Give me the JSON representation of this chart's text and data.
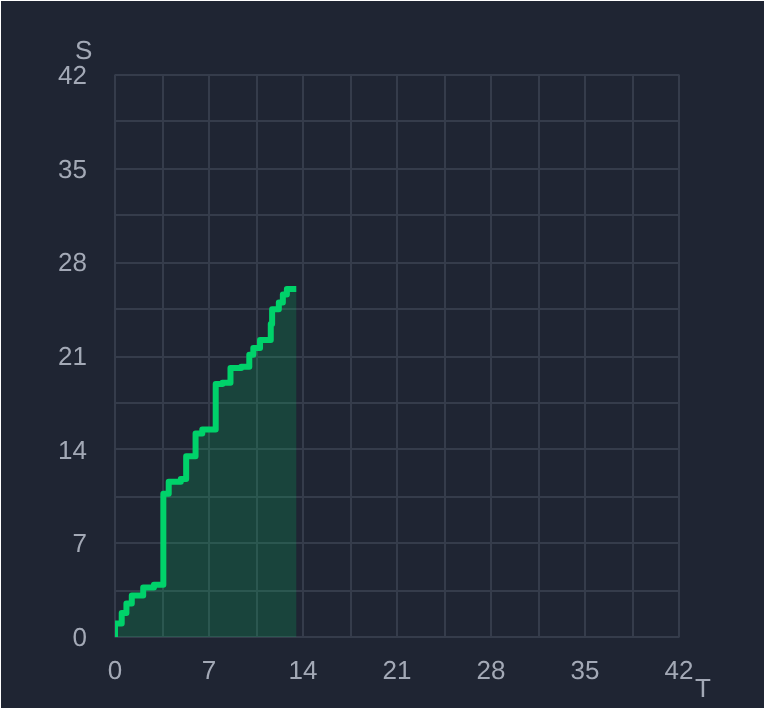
{
  "chart_data": {
    "type": "area",
    "xlabel": "T",
    "ylabel": "S",
    "x": [
      0,
      0,
      0.5,
      0.5,
      0.85,
      0.85,
      1.25,
      1.25,
      2.1,
      2.1,
      2.9,
      2.9,
      3.6,
      3.6,
      4.0,
      4.0,
      4.9,
      4.9,
      5.3,
      5.3,
      6.0,
      6.0,
      6.5,
      6.5,
      7.5,
      7.5,
      8.0,
      8.0,
      8.6,
      8.6,
      9.4,
      9.4,
      10.0,
      10.0,
      10.3,
      10.3,
      10.8,
      10.8,
      11.6,
      11.6,
      11.7,
      11.7,
      12.2,
      12.2,
      12.5,
      12.5,
      12.8,
      12.8,
      13.5
    ],
    "series": [
      {
        "color": "#00d26a",
        "values": [
          0,
          1.0,
          1.0,
          1.8,
          1.8,
          2.5,
          2.5,
          3.1,
          3.1,
          3.7,
          3.7,
          3.9,
          3.9,
          10.7,
          10.7,
          11.6,
          11.6,
          11.8,
          11.8,
          13.5,
          13.5,
          15.2,
          15.2,
          15.5,
          15.5,
          18.9,
          18.9,
          19.0,
          19.0,
          20.1,
          20.1,
          20.2,
          20.2,
          21.1,
          21.1,
          21.6,
          21.6,
          22.2,
          22.2,
          23.4,
          23.4,
          24.5,
          24.5,
          25.0,
          25.0,
          25.6,
          25.6,
          26.0,
          26.0
        ]
      }
    ],
    "xlim": [
      0,
      42
    ],
    "ylim": [
      0,
      42
    ],
    "xticks": [
      0,
      7,
      14,
      21,
      28,
      35,
      42
    ],
    "yticks": [
      0,
      7,
      14,
      21,
      28,
      35,
      42
    ],
    "grid": true
  }
}
